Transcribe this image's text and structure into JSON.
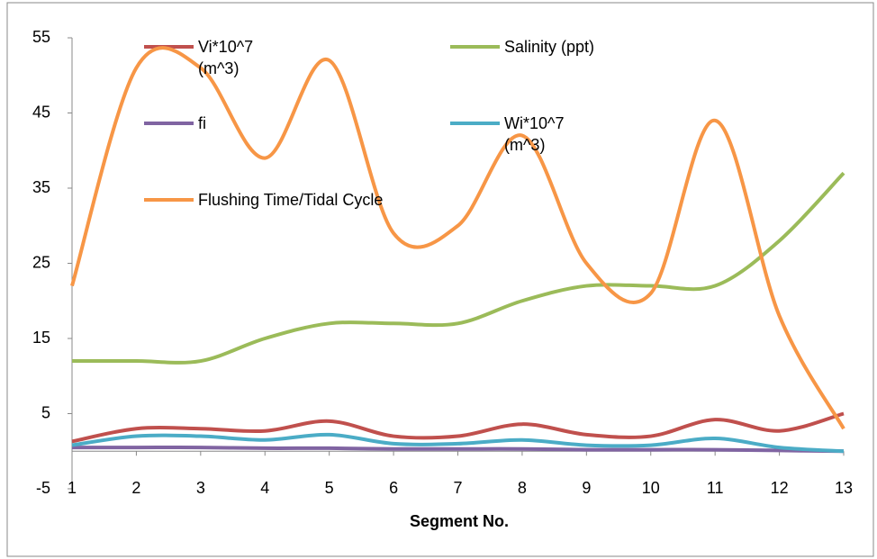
{
  "chart_data": {
    "type": "line",
    "x_label": "Segment No.",
    "x": [
      1,
      2,
      3,
      4,
      5,
      6,
      7,
      8,
      9,
      10,
      11,
      12,
      13
    ],
    "xlim": [
      1,
      13
    ],
    "xticks": [
      1,
      2,
      3,
      4,
      5,
      6,
      7,
      8,
      9,
      10,
      11,
      12,
      13
    ],
    "ylim": [
      -5,
      55
    ],
    "yticks": [
      -5,
      5,
      15,
      25,
      35,
      45,
      55
    ],
    "grid": false,
    "smooth": true,
    "series": [
      {
        "name": "Vi*10^7 (m^3)",
        "color": "#c0504d",
        "values": [
          1.3,
          3,
          3,
          2.7,
          4,
          2,
          2,
          3.6,
          2.2,
          2,
          4.2,
          2.7,
          5
        ]
      },
      {
        "name": "Salinity (ppt)",
        "color": "#9bbb59",
        "values": [
          12,
          12,
          12,
          15,
          17,
          17,
          17,
          20,
          22,
          22,
          22,
          28,
          37
        ]
      },
      {
        "name": "fi",
        "color": "#8064a2",
        "values": [
          0.5,
          0.5,
          0.5,
          0.4,
          0.4,
          0.3,
          0.3,
          0.3,
          0.2,
          0.2,
          0.2,
          0.1,
          0
        ]
      },
      {
        "name": "Wi*10^7 (m^3)",
        "color": "#4bacc6",
        "values": [
          0.8,
          2,
          2,
          1.5,
          2.2,
          1,
          1,
          1.5,
          0.8,
          0.8,
          1.7,
          0.5,
          0
        ]
      },
      {
        "name": "Flushing Time/Tidal Cycle",
        "color": "#f79646",
        "values": [
          22,
          51,
          51,
          39,
          52,
          29,
          30,
          42,
          25,
          21,
          44,
          18,
          3
        ]
      }
    ]
  }
}
